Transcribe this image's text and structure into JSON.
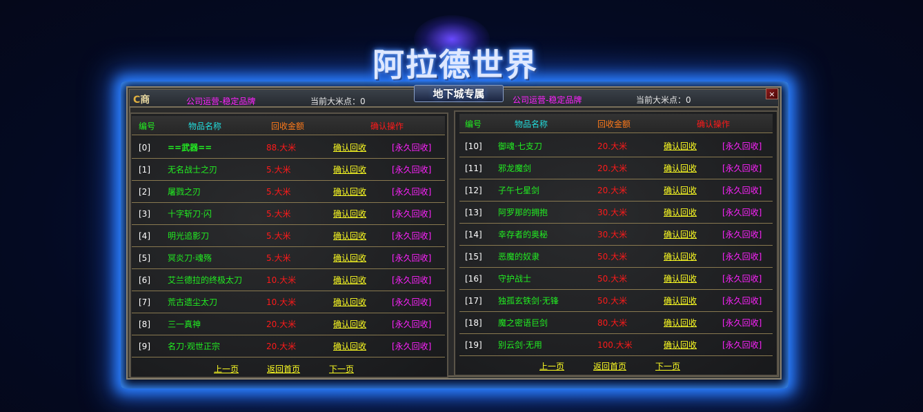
{
  "logo": {
    "title": "阿拉德世界",
    "subtitle": "地下城专属"
  },
  "titlebar": {
    "shop_icon": "shop-c-icon",
    "shop_label": "商",
    "left": {
      "slogan": "公司运营-稳定品牌",
      "points": "当前大米点：0"
    },
    "right": {
      "slogan": "公司运营-稳定品牌",
      "points": "当前大米点：0"
    },
    "close_label": "×"
  },
  "colors": {
    "id": "#ffffff",
    "name": "#22ee22",
    "amount": "#ff1a1a",
    "confirm": "#ffff22",
    "permanent": "#ff22ff",
    "header_id": "#22ee22",
    "header_name": "#22dddd",
    "header_amount": "#ff7a1a",
    "header_action": "#ff1a1a"
  },
  "headers": {
    "id": "编号",
    "name": "物品名称",
    "amount": "回收金额",
    "action": "确认操作"
  },
  "left_panel": {
    "rows": [
      {
        "id": "[0]",
        "name": "==武器==",
        "amount": "88.大米",
        "confirm": "确认回收",
        "permanent": "[永久回收]"
      },
      {
        "id": "[1]",
        "name": "无名战士之刃",
        "amount": "5.大米",
        "confirm": "确认回收",
        "permanent": "[永久回收]"
      },
      {
        "id": "[2]",
        "name": "屠戮之刃",
        "amount": "5.大米",
        "confirm": "确认回收",
        "permanent": "[永久回收]"
      },
      {
        "id": "[3]",
        "name": "十字斩刀·闪",
        "amount": "5.大米",
        "confirm": "确认回收",
        "permanent": "[永久回收]"
      },
      {
        "id": "[4]",
        "name": "明光追影刀",
        "amount": "5.大米",
        "confirm": "确认回收",
        "permanent": "[永久回收]"
      },
      {
        "id": "[5]",
        "name": "冥炎刀·魂殇",
        "amount": "5.大米",
        "confirm": "确认回收",
        "permanent": "[永久回收]"
      },
      {
        "id": "[6]",
        "name": "艾兰德拉的终极太刀",
        "amount": "10.大米",
        "confirm": "确认回收",
        "permanent": "[永久回收]"
      },
      {
        "id": "[7]",
        "name": "荒古遗尘太刀",
        "amount": "10.大米",
        "confirm": "确认回收",
        "permanent": "[永久回收]"
      },
      {
        "id": "[8]",
        "name": "三一真神",
        "amount": "20.大米",
        "confirm": "确认回收",
        "permanent": "[永久回收]"
      },
      {
        "id": "[9]",
        "name": "名刀·观世正宗",
        "amount": "20.大米",
        "confirm": "确认回收",
        "permanent": "[永久回收]"
      }
    ]
  },
  "right_panel": {
    "rows": [
      {
        "id": "[10]",
        "name": "御魂·七支刀",
        "amount": "20.大米",
        "confirm": "确认回收",
        "permanent": "[永久回收]"
      },
      {
        "id": "[11]",
        "name": "邪龙魔剑",
        "amount": "20.大米",
        "confirm": "确认回收",
        "permanent": "[永久回收]"
      },
      {
        "id": "[12]",
        "name": "子午七星剑",
        "amount": "20.大米",
        "confirm": "确认回收",
        "permanent": "[永久回收]"
      },
      {
        "id": "[13]",
        "name": "阿罗那的拥抱",
        "amount": "30.大米",
        "confirm": "确认回收",
        "permanent": "[永久回收]"
      },
      {
        "id": "[14]",
        "name": "幸存者的奥秘",
        "amount": "30.大米",
        "confirm": "确认回收",
        "permanent": "[永久回收]"
      },
      {
        "id": "[15]",
        "name": "恶魔的奴隶",
        "amount": "50.大米",
        "confirm": "确认回收",
        "permanent": "[永久回收]"
      },
      {
        "id": "[16]",
        "name": "守护战士",
        "amount": "50.大米",
        "confirm": "确认回收",
        "permanent": "[永久回收]"
      },
      {
        "id": "[17]",
        "name": "独孤玄铁剑·无锋",
        "amount": "50.大米",
        "confirm": "确认回收",
        "permanent": "[永久回收]"
      },
      {
        "id": "[18]",
        "name": "魔之密语巨剑",
        "amount": "80.大米",
        "confirm": "确认回收",
        "permanent": "[永久回收]"
      },
      {
        "id": "[19]",
        "name": "别云剑·无用",
        "amount": "100.大米",
        "confirm": "确认回收",
        "permanent": "[永久回收]"
      }
    ]
  },
  "pagination": {
    "prev": "上一页",
    "home": "返回首页",
    "next": "下一页"
  }
}
